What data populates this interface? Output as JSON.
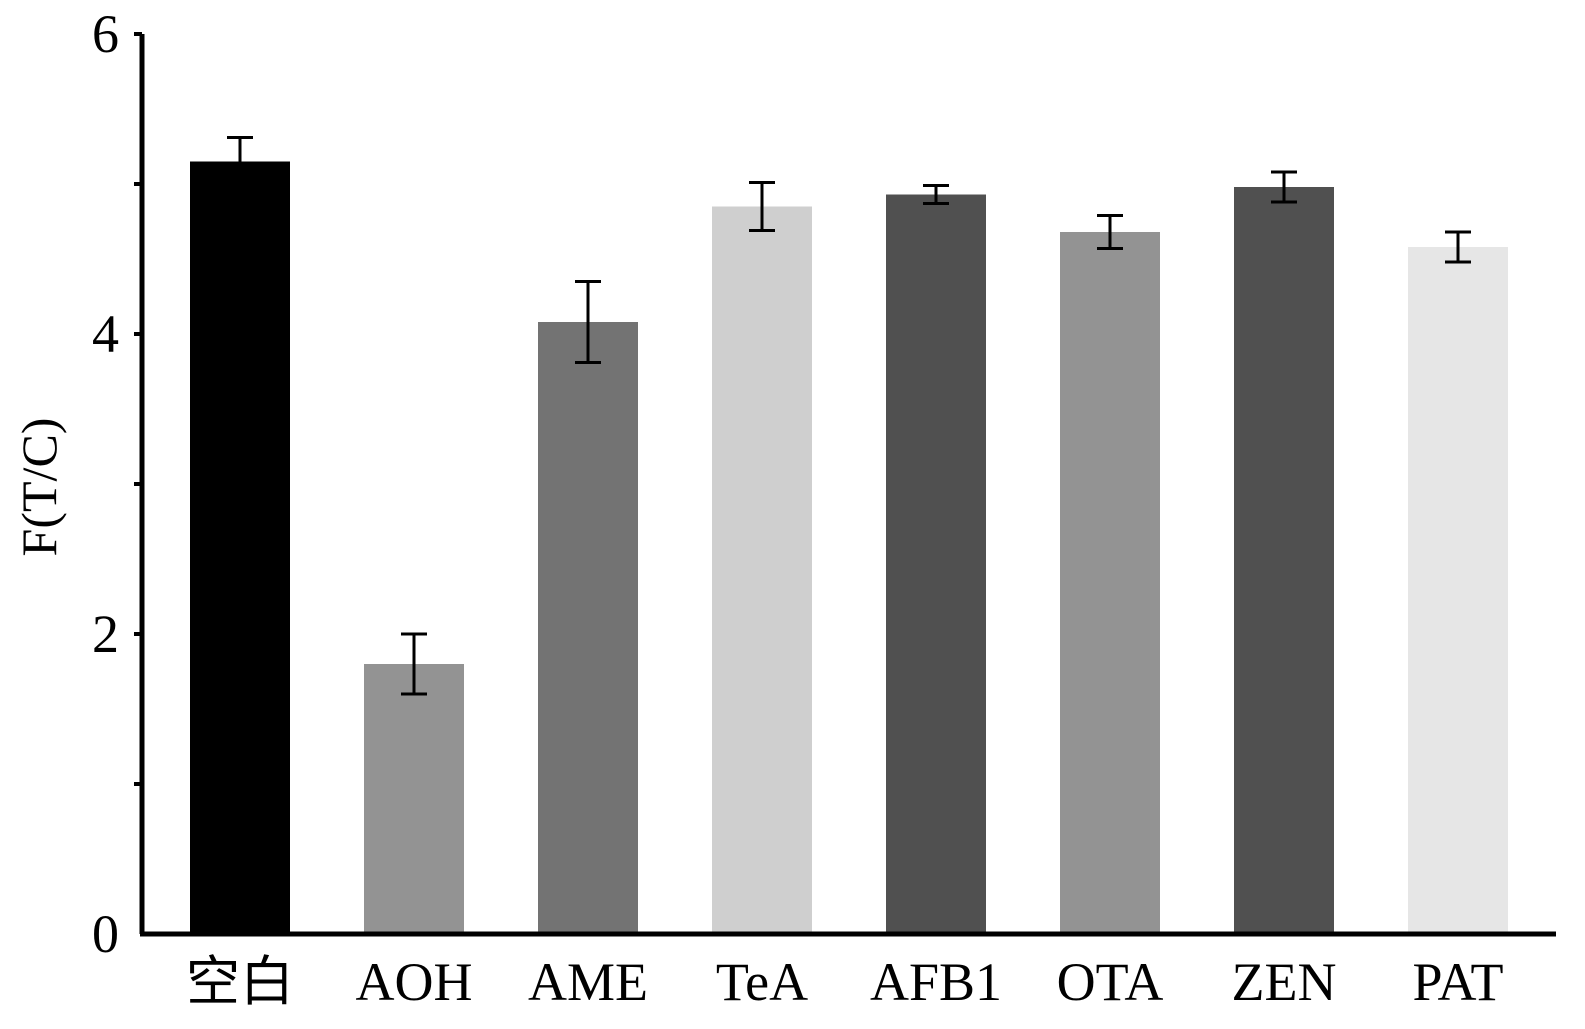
{
  "chart_data": {
    "type": "bar",
    "title": "",
    "xlabel": "",
    "ylabel": "F(T/C)",
    "ylim": [
      0,
      6
    ],
    "yticks": [
      0,
      1,
      2,
      3,
      4,
      5,
      6
    ],
    "ytick_labels": [
      "0",
      "",
      "2",
      "",
      "4",
      "",
      "6"
    ],
    "categories": [
      "空白",
      "AOH",
      "AME",
      "TeA",
      "AFB1",
      "OTA",
      "ZEN",
      "PAT"
    ],
    "values": [
      5.15,
      1.8,
      4.08,
      4.85,
      4.93,
      4.68,
      4.98,
      4.58
    ],
    "errors": [
      0.16,
      0.2,
      0.27,
      0.16,
      0.06,
      0.11,
      0.1,
      0.1
    ],
    "bar_colors": [
      "#000000",
      "#939393",
      "#737373",
      "#cfcfcf",
      "#505050",
      "#939393",
      "#505050",
      "#e6e6e6"
    ],
    "grid": false,
    "legend": "none"
  }
}
